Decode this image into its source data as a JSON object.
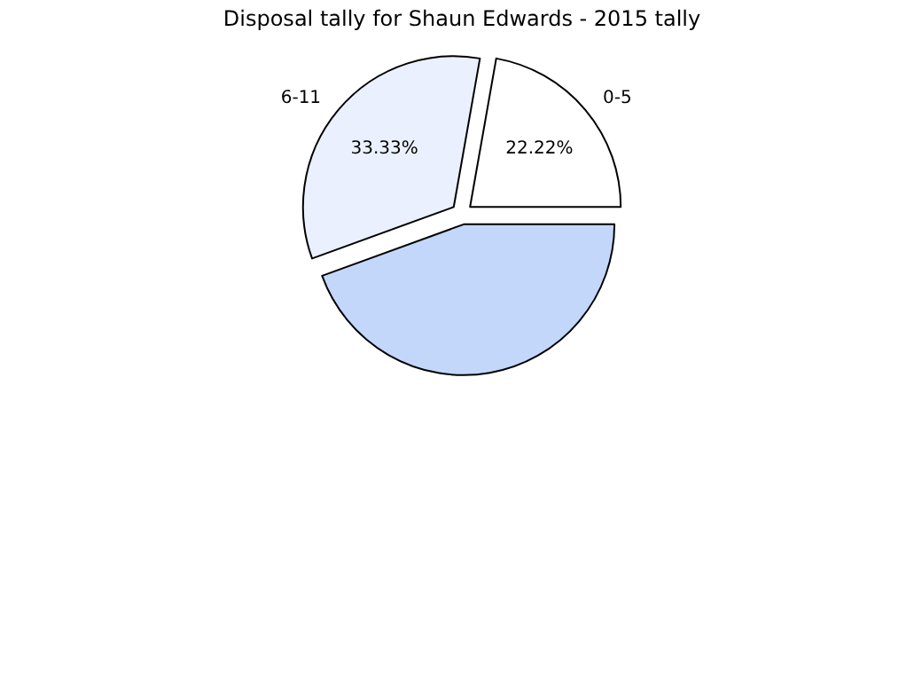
{
  "chart_data": {
    "type": "pie",
    "title": "Disposal tally for Shaun Edwards - 2015 tally",
    "categories": [
      "0-5",
      "6-11",
      null
    ],
    "values": [
      22.22,
      33.33,
      44.45
    ],
    "colors": [
      "#ffffff",
      "#eaf0fd",
      "#c3d7fb"
    ],
    "value_labels": [
      "22.22%",
      "33.33%",
      null
    ]
  }
}
